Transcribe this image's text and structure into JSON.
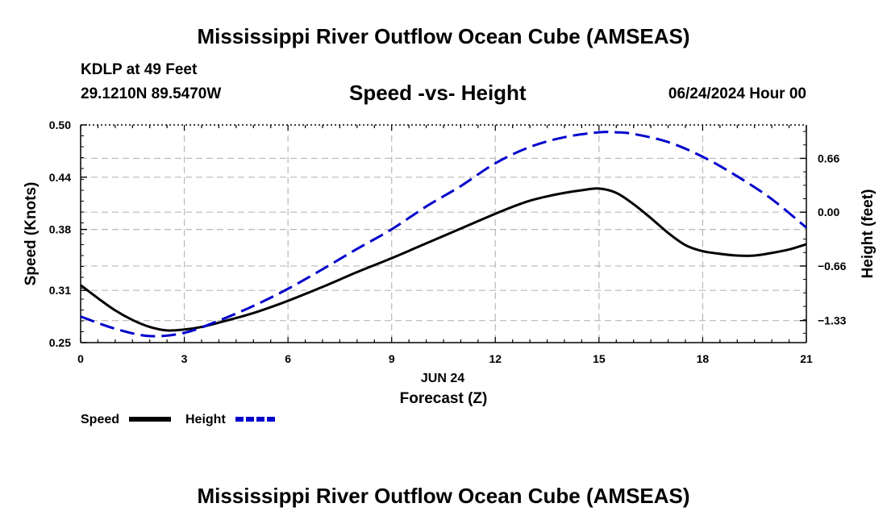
{
  "header": {
    "title": "Mississippi River Outflow Ocean Cube (AMSEAS)",
    "station": "KDLP at 49 Feet",
    "coords": "29.1210N  89.5470W",
    "datetime": "06/24/2024 Hour 00"
  },
  "footer": {
    "title": "Mississippi River Outflow Ocean Cube (AMSEAS)"
  },
  "chart_data": {
    "type": "line",
    "title": "Speed -vs- Height",
    "xlabel": "Forecast (Z)",
    "xsublabel": "JUN 24",
    "ylabel": "Speed (Knots)",
    "y2label": "Height (feet)",
    "x_ticks": [
      0,
      3,
      6,
      9,
      12,
      15,
      18,
      21
    ],
    "x_tick_labels": [
      "0",
      "3",
      "6",
      "9",
      "12",
      "15",
      "18",
      "21"
    ],
    "xlim": [
      0,
      21
    ],
    "y_ticks": [
      0.25,
      0.31,
      0.38,
      0.44,
      0.5
    ],
    "y_tick_labels": [
      "0.25",
      "0.31",
      "0.38",
      "0.44",
      "0.50"
    ],
    "ylim": [
      0.25,
      0.5
    ],
    "y2_ticks": [
      0.66,
      0.0,
      -0.66,
      -1.33
    ],
    "y2_tick_labels": [
      "0.66",
      "0.00",
      "−0.66",
      "−1.33"
    ],
    "y2lim": [
      -1.6,
      1.07
    ],
    "grid": true,
    "legend_position": "bottom-left",
    "series": [
      {
        "name": "Speed",
        "color": "#000000",
        "dash": "solid",
        "axis": "left",
        "x": [
          0,
          0.5,
          1,
          1.5,
          2,
          2.5,
          3,
          3.5,
          4,
          5,
          6,
          7,
          8,
          9,
          10,
          11,
          12,
          12.5,
          13,
          13.5,
          14,
          14.5,
          15,
          15.5,
          16,
          16.5,
          17,
          17.5,
          18,
          18.5,
          19,
          19.5,
          20,
          20.5,
          21
        ],
        "values": [
          0.316,
          0.301,
          0.287,
          0.276,
          0.268,
          0.264,
          0.265,
          0.268,
          0.273,
          0.284,
          0.298,
          0.314,
          0.331,
          0.347,
          0.364,
          0.381,
          0.398,
          0.406,
          0.413,
          0.418,
          0.422,
          0.425,
          0.427,
          0.422,
          0.409,
          0.393,
          0.376,
          0.362,
          0.355,
          0.352,
          0.35,
          0.35,
          0.353,
          0.357,
          0.363
        ]
      },
      {
        "name": "Height",
        "color": "#0000cc",
        "dash": "dashed",
        "axis": "right",
        "x": [
          0,
          1,
          2,
          3,
          4,
          5,
          6,
          7,
          8,
          9,
          10,
          11,
          12,
          13,
          14,
          15,
          15.5,
          16,
          17,
          18,
          19,
          20,
          21
        ],
        "values": [
          -1.28,
          -1.43,
          -1.52,
          -1.48,
          -1.33,
          -1.15,
          -0.94,
          -0.7,
          -0.45,
          -0.21,
          0.07,
          0.32,
          0.6,
          0.8,
          0.92,
          0.98,
          0.98,
          0.96,
          0.86,
          0.68,
          0.44,
          0.16,
          -0.19
        ]
      }
    ]
  }
}
